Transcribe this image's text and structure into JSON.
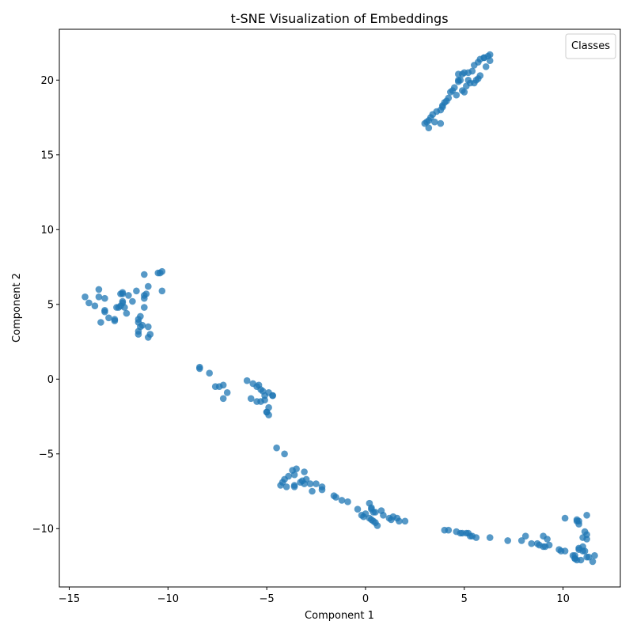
{
  "chart_data": {
    "type": "scatter",
    "title": "t-SNE Visualization of Embeddings",
    "xlabel": "Component 1",
    "ylabel": "Component 2",
    "xlim": [
      -15.5,
      12.9
    ],
    "ylim": [
      -13.9,
      23.4
    ],
    "xticks": [
      -15,
      -10,
      -5,
      0,
      5,
      10
    ],
    "yticks": [
      -10,
      -5,
      0,
      5,
      10,
      15,
      20
    ],
    "grid": false,
    "legend": {
      "title": "Classes",
      "placement": "top-right",
      "entries": []
    },
    "point_color": "#1f77b4",
    "point_opacity": 0.75,
    "series": [
      {
        "x": [
          6.3,
          6.2,
          6.0,
          5.8,
          5.7,
          5.5,
          5.4,
          5.2,
          5.0,
          4.9,
          4.8,
          4.7,
          4.5,
          4.4,
          4.2,
          4.1,
          3.9,
          3.8,
          3.6,
          3.4,
          3.3,
          3.2,
          3.1,
          3.0,
          3.2,
          3.8,
          4.6,
          4.9,
          5.1,
          5.3,
          5.5,
          5.6,
          5.7,
          5.8,
          6.1,
          6.3,
          6.0,
          4.7,
          4.3,
          4.0,
          3.9,
          4.7,
          5.0,
          5.2,
          3.5
        ],
        "y": [
          21.7,
          21.6,
          21.5,
          21.4,
          21.2,
          21.0,
          20.6,
          20.5,
          20.5,
          20.4,
          20.0,
          19.9,
          19.5,
          19.3,
          18.8,
          18.6,
          18.3,
          18.0,
          17.9,
          17.7,
          17.5,
          17.3,
          17.2,
          17.1,
          16.8,
          17.1,
          19.0,
          19.3,
          19.6,
          19.8,
          19.8,
          20.0,
          20.1,
          20.3,
          20.9,
          21.3,
          21.5,
          20.0,
          19.2,
          18.5,
          18.2,
          20.4,
          19.2,
          20.0,
          17.2
        ]
      },
      {
        "x": [
          -14.2,
          -14.0,
          -13.7,
          -13.5,
          -13.5,
          -13.2,
          -13.2,
          -13.4,
          -13.0,
          -12.7,
          -12.5,
          -12.4,
          -12.3,
          -12.3,
          -12.2,
          -12.0,
          -11.8,
          -11.6,
          -11.5,
          -11.5,
          -11.4,
          -11.3,
          -11.2,
          -11.2,
          -11.1,
          -11.0,
          -11.0,
          -10.9,
          -10.5,
          -10.3,
          -10.3,
          -11.2,
          -11.2,
          -11.5,
          -11.0,
          -12.4,
          -12.7,
          -12.3,
          -12.3,
          -13.2,
          -11.5,
          -11.4,
          -12.6,
          -12.1,
          -10.4
        ],
        "y": [
          5.5,
          5.1,
          4.9,
          5.5,
          6.0,
          5.4,
          4.5,
          3.8,
          4.1,
          4.0,
          4.8,
          5.7,
          5.7,
          5.8,
          4.8,
          5.6,
          5.2,
          5.9,
          3.8,
          4.0,
          4.2,
          3.6,
          5.4,
          5.6,
          5.7,
          6.2,
          3.5,
          3.0,
          7.1,
          7.2,
          5.9,
          7.0,
          4.8,
          3.2,
          2.8,
          4.9,
          3.9,
          5.2,
          5.1,
          4.6,
          3.0,
          3.5,
          4.8,
          4.4,
          7.1
        ]
      },
      {
        "x": [
          -8.4,
          -8.4,
          -7.9,
          -7.6,
          -7.4,
          -7.2,
          -7.0,
          -7.2,
          -6.0,
          -5.7,
          -5.5,
          -5.4,
          -5.3,
          -5.2,
          -5.1,
          -4.9,
          -4.7,
          -4.7,
          -5.8,
          -5.5,
          -5.3,
          -5.1,
          -4.9,
          -5.0,
          -5.0,
          -4.9
        ],
        "y": [
          0.8,
          0.7,
          0.4,
          -0.5,
          -0.5,
          -0.4,
          -0.9,
          -1.3,
          -0.1,
          -0.3,
          -0.5,
          -0.4,
          -0.7,
          -0.8,
          -1.1,
          -0.9,
          -1.1,
          -1.1,
          -1.3,
          -1.5,
          -1.5,
          -1.4,
          -1.9,
          -2.2,
          -2.2,
          -2.4
        ]
      },
      {
        "x": [
          -4.5,
          -4.1,
          -3.9,
          -3.7,
          -3.5,
          -3.6,
          -3.1,
          -3.2,
          -3.0,
          -2.8,
          -2.5,
          -2.2,
          -2.2,
          -2.7,
          -3.6,
          -3.6,
          -3.3,
          -3.1,
          -4.1,
          -4.2,
          -4.3,
          -4.0,
          -1.6,
          -1.5,
          -1.2,
          -0.9,
          -0.4,
          -0.2,
          -0.1,
          0.0,
          0.2,
          0.3,
          0.4,
          0.3,
          0.2,
          0.4,
          0.5,
          0.6,
          0.8,
          0.9,
          1.2,
          1.4,
          1.6,
          1.7,
          2.0,
          1.3,
          0.3,
          0.5
        ],
        "y": [
          -4.6,
          -5.0,
          -6.5,
          -6.1,
          -6.0,
          -6.4,
          -6.2,
          -6.8,
          -6.7,
          -7.0,
          -7.0,
          -7.2,
          -7.4,
          -7.5,
          -7.1,
          -7.2,
          -6.9,
          -7.0,
          -6.7,
          -6.9,
          -7.1,
          -7.2,
          -7.8,
          -7.9,
          -8.1,
          -8.2,
          -8.7,
          -9.1,
          -9.2,
          -9.0,
          -8.3,
          -8.6,
          -8.9,
          -9.4,
          -9.3,
          -9.5,
          -9.6,
          -9.8,
          -8.8,
          -9.1,
          -9.3,
          -9.2,
          -9.3,
          -9.5,
          -9.5,
          -9.4,
          -8.7,
          -8.9
        ]
      },
      {
        "x": [
          4.0,
          4.2,
          4.6,
          4.8,
          4.9,
          5.1,
          5.2,
          5.3,
          5.4,
          5.6,
          6.3,
          7.2,
          7.9,
          8.1,
          8.4,
          8.7,
          8.8,
          9.0,
          9.1,
          9.3,
          9.8,
          9.9,
          10.1,
          10.1,
          10.5,
          10.6,
          10.7,
          10.8,
          10.9,
          11.0,
          11.1,
          11.2,
          11.2,
          11.3,
          11.5,
          11.6,
          11.1,
          11.0,
          10.8,
          10.8,
          11.2,
          11.2,
          10.7,
          10.8,
          10.6,
          11.0,
          10.6,
          9.0,
          9.2,
          10.7
        ],
        "y": [
          -10.1,
          -10.1,
          -10.2,
          -10.3,
          -10.3,
          -10.3,
          -10.3,
          -10.5,
          -10.5,
          -10.6,
          -10.6,
          -10.8,
          -10.8,
          -10.5,
          -11.0,
          -11.0,
          -11.1,
          -10.5,
          -11.2,
          -11.1,
          -11.4,
          -11.5,
          -11.5,
          -9.3,
          -11.8,
          -12.0,
          -12.1,
          -11.4,
          -12.1,
          -11.5,
          -11.5,
          -11.9,
          -10.7,
          -11.9,
          -12.2,
          -11.8,
          -10.2,
          -10.6,
          -9.5,
          -9.7,
          -9.1,
          -10.4,
          -9.5,
          -11.3,
          -11.8,
          -11.2,
          -12.0,
          -11.2,
          -10.7,
          -9.4
        ]
      }
    ]
  }
}
